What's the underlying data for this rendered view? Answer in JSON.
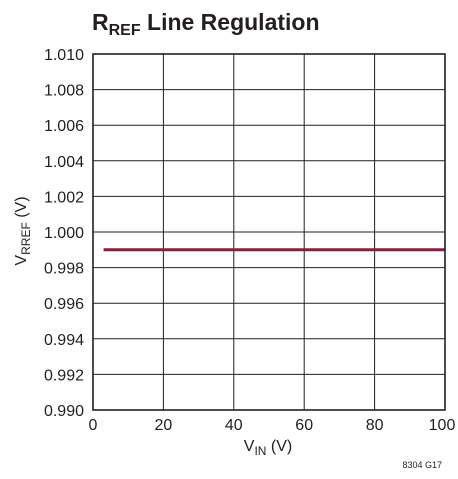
{
  "chart_data": {
    "type": "line",
    "title_main": "R",
    "title_sub": "REF",
    "title_rest": " Line Regulation",
    "xlabel_main": "V",
    "xlabel_sub": "IN",
    "xlabel_rest": " (V)",
    "ylabel_main": "V",
    "ylabel_sub": "RREF",
    "ylabel_rest": " (V)",
    "xlim": [
      0,
      100
    ],
    "ylim": [
      0.99,
      1.01
    ],
    "x_ticks": [
      0,
      20,
      40,
      60,
      80,
      100
    ],
    "x_tick_labels": [
      "0",
      "20",
      "40",
      "60",
      "80",
      "100"
    ],
    "y_ticks": [
      0.99,
      0.992,
      0.994,
      0.996,
      0.998,
      1.0,
      1.002,
      1.004,
      1.006,
      1.008,
      1.01
    ],
    "y_tick_labels": [
      "0.990",
      "0.992",
      "0.994",
      "0.996",
      "0.998",
      "1.000",
      "1.002",
      "1.004",
      "1.006",
      "1.008",
      "1.010"
    ],
    "grid": true,
    "series": [
      {
        "color": "#8b1e3f",
        "x": [
          3,
          100
        ],
        "y": [
          0.999,
          0.999
        ]
      }
    ],
    "figure_id": "8304 G17"
  }
}
